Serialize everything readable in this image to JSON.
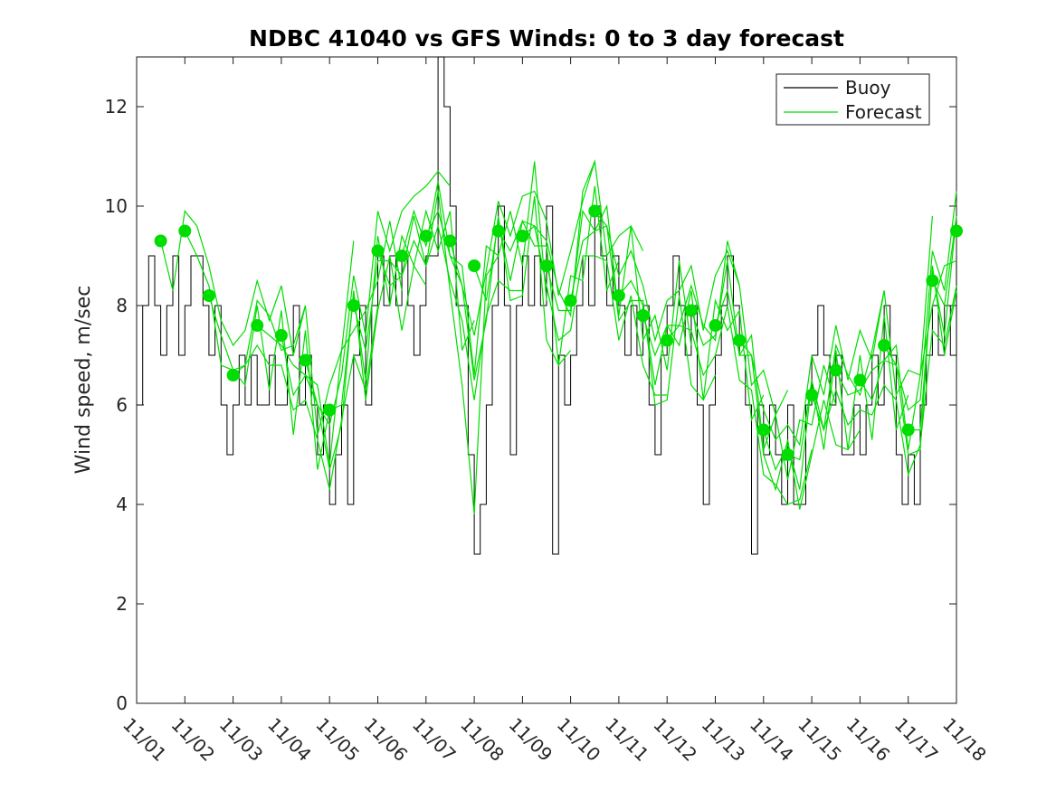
{
  "figure": {
    "title": "NDBC 41040 vs GFS Winds: 0 to 3 day forecast",
    "y_axis_label": "Wind speed, m/sec",
    "background": "#ffffff",
    "axis_color": "#1a1a1a"
  },
  "legend": {
    "position": "top-right",
    "items": [
      {
        "label": "Buoy",
        "color": "#000000"
      },
      {
        "label": "Forecast",
        "color": "#00dd00"
      }
    ]
  },
  "chart_data": {
    "type": "line",
    "title": "NDBC 41040 vs GFS Winds: 0 to 3 day forecast",
    "xlabel": "",
    "ylabel": "Wind speed, m/sec",
    "ylim": [
      0,
      13
    ],
    "yticks": [
      0,
      2,
      4,
      6,
      8,
      10,
      12
    ],
    "xtick_labels": [
      "11/01",
      "11/02",
      "11/03",
      "11/04",
      "11/05",
      "11/06",
      "11/07",
      "11/08",
      "11/09",
      "11/10",
      "11/11",
      "11/12",
      "11/13",
      "11/14",
      "11/15",
      "11/16",
      "11/17",
      "11/18"
    ],
    "x_range_days": [
      0,
      17
    ],
    "grid": false,
    "legend_position": "top-right",
    "series": [
      {
        "name": "Buoy",
        "type": "step",
        "color": "#000000",
        "t0": 0,
        "dt_days": 0.125,
        "values": [
          6,
          8,
          9,
          8,
          7,
          8,
          9,
          7,
          8,
          9,
          9,
          8,
          7,
          8,
          6,
          5,
          6,
          7,
          6,
          7,
          6,
          6,
          7,
          6,
          6,
          7,
          8,
          6,
          7,
          6,
          5,
          6,
          4,
          5,
          6,
          4,
          7,
          8,
          6,
          8,
          9,
          8,
          9,
          8,
          9,
          8,
          7,
          8,
          9,
          9,
          13,
          12,
          10,
          8,
          8,
          5,
          3,
          4,
          6,
          8,
          10,
          8,
          5,
          8,
          9,
          8,
          9,
          8,
          10,
          3,
          7,
          6,
          7,
          8,
          9,
          8,
          10,
          9,
          8,
          9,
          8,
          7,
          8,
          7,
          8,
          6,
          5,
          7,
          8,
          9,
          8,
          7,
          8,
          6,
          4,
          6,
          7,
          8,
          9,
          8,
          7,
          6,
          3,
          6,
          5,
          6,
          5,
          4,
          6,
          4,
          4,
          6,
          7,
          8,
          7,
          6,
          7,
          5,
          5,
          6,
          5,
          6,
          7,
          6,
          8,
          7,
          5,
          4,
          5,
          4,
          6,
          7,
          8,
          7,
          8,
          7,
          9
        ]
      },
      {
        "name": "Forecast",
        "type": "multi-line",
        "color": "#00dd00",
        "marker": "filled-circle",
        "marker_radius_px": 7,
        "start_t0": 0.5,
        "start_dt": 0.5,
        "start_values": [
          9.3,
          9.5,
          8.2,
          6.6,
          7.6,
          7.4,
          6.9,
          5.9,
          8.0,
          9.1,
          9.0,
          9.4,
          9.3,
          8.8,
          9.5,
          9.4,
          8.8,
          8.1,
          9.9,
          8.2,
          7.8,
          7.3,
          7.9,
          7.6,
          7.3,
          5.5,
          5.0,
          6.2,
          6.7,
          6.5,
          7.2,
          5.5,
          8.5,
          9.5
        ],
        "lead_dt_days": 0.25,
        "lead_steps": 12,
        "consensus": {
          "t0": 0.5,
          "dt_days": 0.25,
          "values": [
            9.3,
            8.1,
            9.5,
            9.3,
            8.2,
            7.3,
            6.4,
            7.0,
            7.6,
            7.1,
            7.4,
            6.3,
            6.9,
            5.8,
            5.2,
            6.3,
            8.0,
            7.0,
            9.1,
            8.6,
            9.0,
            9.6,
            9.4,
            10.0,
            9.3,
            8.2,
            7.0,
            8.4,
            9.5,
            9.0,
            9.4,
            9.8,
            8.8,
            7.6,
            8.1,
            9.4,
            9.8,
            9.4,
            8.2,
            8.8,
            7.8,
            6.9,
            7.3,
            7.8,
            7.9,
            6.9,
            7.6,
            8.4,
            7.3,
            6.8,
            5.5,
            5.0,
            5.0,
            4.8,
            6.2,
            5.7,
            6.7,
            5.9,
            6.5,
            6.2,
            7.2,
            6.6,
            5.5,
            5.8,
            8.5,
            7.9,
            9.5
          ]
        },
        "deviation_patterns": [
          [
            0,
            0.2,
            0.4,
            0.3,
            0.6,
            0.4,
            0.8,
            0.5,
            0.9,
            0.6,
            1.0,
            0.7,
            1.1
          ],
          [
            0,
            -0.2,
            -0.4,
            -0.3,
            -0.6,
            -0.4,
            -0.8,
            -0.5,
            -0.9,
            -0.6,
            -1.0,
            -0.7,
            -1.1
          ],
          [
            0,
            0.3,
            -0.2,
            0.5,
            -0.3,
            0.6,
            -0.4,
            0.8,
            -0.5,
            0.9,
            -0.6,
            1.1,
            -0.7
          ],
          [
            0,
            -0.3,
            0.2,
            -0.5,
            0.3,
            -0.6,
            0.4,
            -0.8,
            0.5,
            -0.9,
            0.6,
            -1.1,
            0.7
          ],
          [
            0,
            0.1,
            -0.2,
            0.3,
            -0.4,
            0.2,
            -0.6,
            0.3,
            -1.0,
            -1.8,
            -3.2,
            0.2,
            -0.5
          ],
          [
            0,
            0.1,
            0.3,
            -0.2,
            0.5,
            0.7,
            -0.3,
            0.9,
            1.1,
            -0.4,
            1.2,
            0.8,
            1.3
          ],
          [
            0,
            -0.1,
            -0.3,
            0.2,
            -0.5,
            -0.7,
            0.3,
            -0.9,
            -1.2,
            0.4,
            -1.5,
            -0.8,
            -1.0
          ]
        ],
        "run_pattern_index": [
          0,
          3,
          5,
          1,
          2,
          6,
          0,
          3,
          4,
          1,
          2,
          6,
          0,
          3,
          5,
          1,
          2,
          6,
          0,
          3,
          5,
          1,
          2,
          6,
          0,
          3,
          5,
          1,
          2,
          6,
          0,
          3,
          5,
          1
        ]
      }
    ]
  }
}
